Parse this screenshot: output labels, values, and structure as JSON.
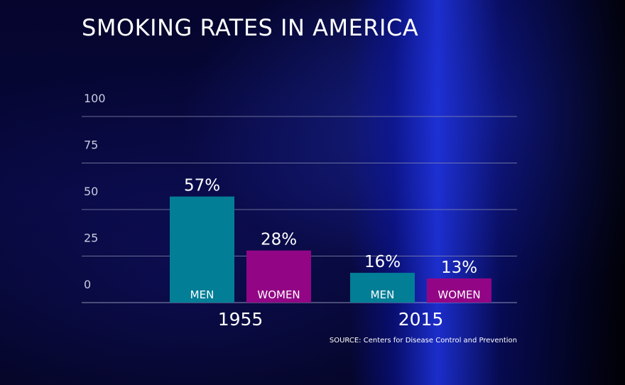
{
  "title": "SMOKING RATES IN AMERICA",
  "source": "SOURCE: Centers for Disease Control and Prevention",
  "colors": {
    "men": "#037e97",
    "women": "#920686",
    "grid": "#8a8fb0",
    "text": "#ffffff"
  },
  "chart_data": {
    "type": "bar",
    "categories": [
      "1955",
      "2015"
    ],
    "series": [
      {
        "name": "MEN",
        "values": [
          57,
          16
        ],
        "labels": [
          "57%",
          "16%"
        ]
      },
      {
        "name": "WOMEN",
        "values": [
          28,
          13
        ],
        "labels": [
          "28%",
          "13%"
        ]
      }
    ],
    "yticks": [
      "100",
      "75",
      "50",
      "25",
      "0"
    ],
    "ylim": [
      0,
      100
    ],
    "grid": true
  }
}
